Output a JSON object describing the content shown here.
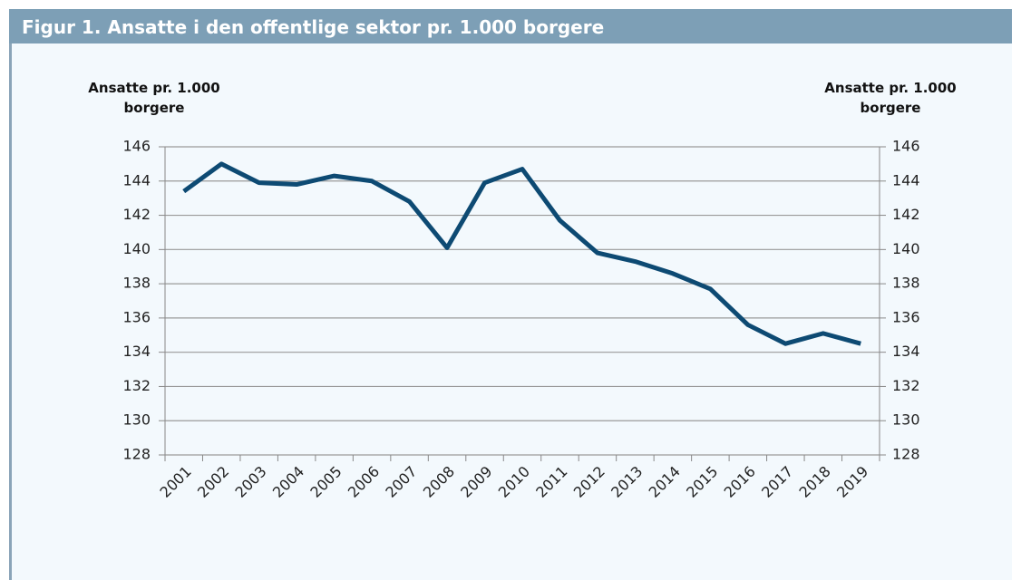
{
  "chart_data": {
    "type": "line",
    "title": "Figur 1. Ansatte i den offentlige sektor pr. 1.000 borgere",
    "y_label": "Ansatte pr. 1.000 borgere",
    "y2_label": "Ansatte pr. 1.000 borgere",
    "categories": [
      "2001",
      "2002",
      "2003",
      "2004",
      "2005",
      "2006",
      "2007",
      "2008",
      "2009",
      "2010",
      "2011",
      "2012",
      "2013",
      "2014",
      "2015",
      "2016",
      "2017",
      "2018",
      "2019"
    ],
    "series": [
      {
        "name": "Ansatte pr. 1.000 borgere",
        "color": "#0d4a73",
        "values": [
          143.4,
          145.0,
          143.9,
          143.8,
          144.3,
          144.0,
          142.8,
          140.1,
          143.9,
          144.7,
          141.7,
          139.8,
          139.3,
          138.6,
          137.7,
          135.6,
          134.5,
          135.1,
          134.5
        ]
      }
    ],
    "ylim": [
      128,
      146
    ],
    "yticks": [
      128,
      130,
      132,
      134,
      136,
      138,
      140,
      142,
      144,
      146
    ],
    "y2lim": [
      128,
      146
    ],
    "y2ticks": [
      128,
      130,
      132,
      134,
      136,
      138,
      140,
      142,
      144,
      146
    ],
    "grid": true
  }
}
